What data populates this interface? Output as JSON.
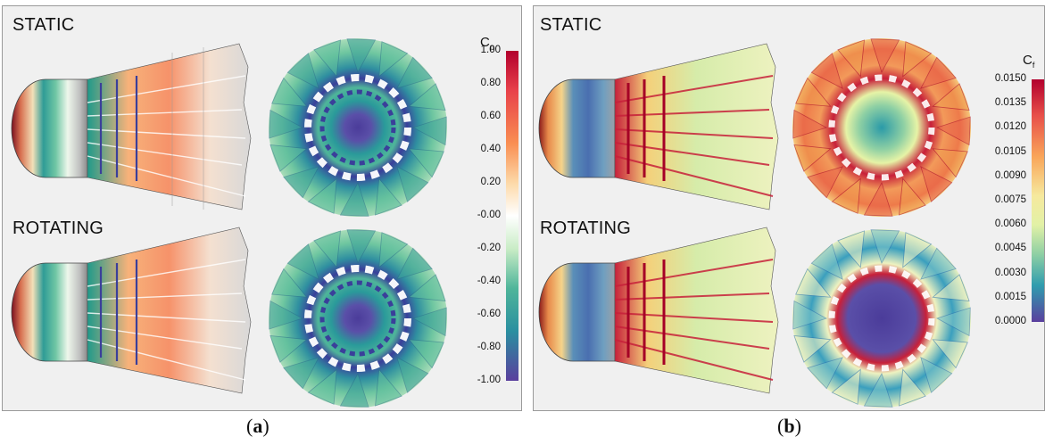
{
  "panel_a": {
    "label_static": "STATIC",
    "label_rotating": "ROTATING",
    "colorbar": {
      "symbol": "C",
      "subscript": "p",
      "ticks": [
        "1.00",
        "0.80",
        "0.60",
        "0.40",
        "0.20",
        "-0.00",
        "-0.20",
        "-0.40",
        "-0.60",
        "-0.80",
        "-1.00"
      ]
    },
    "caption_letter": "a"
  },
  "panel_b": {
    "label_static": "STATIC",
    "label_rotating": "ROTATING",
    "colorbar": {
      "symbol": "C",
      "subscript": "f",
      "ticks": [
        "0.0150",
        "0.0135",
        "0.0120",
        "0.0105",
        "0.0090",
        "0.0075",
        "0.0060",
        "0.0045",
        "0.0030",
        "0.0015",
        "0.0000"
      ]
    },
    "caption_letter": "b"
  },
  "colors": {
    "panel_bg": "#f0f0f0",
    "spectral_high": "#a50026",
    "spectral_mid": "#ffffff",
    "spectral_low": "#4b3c9a"
  }
}
